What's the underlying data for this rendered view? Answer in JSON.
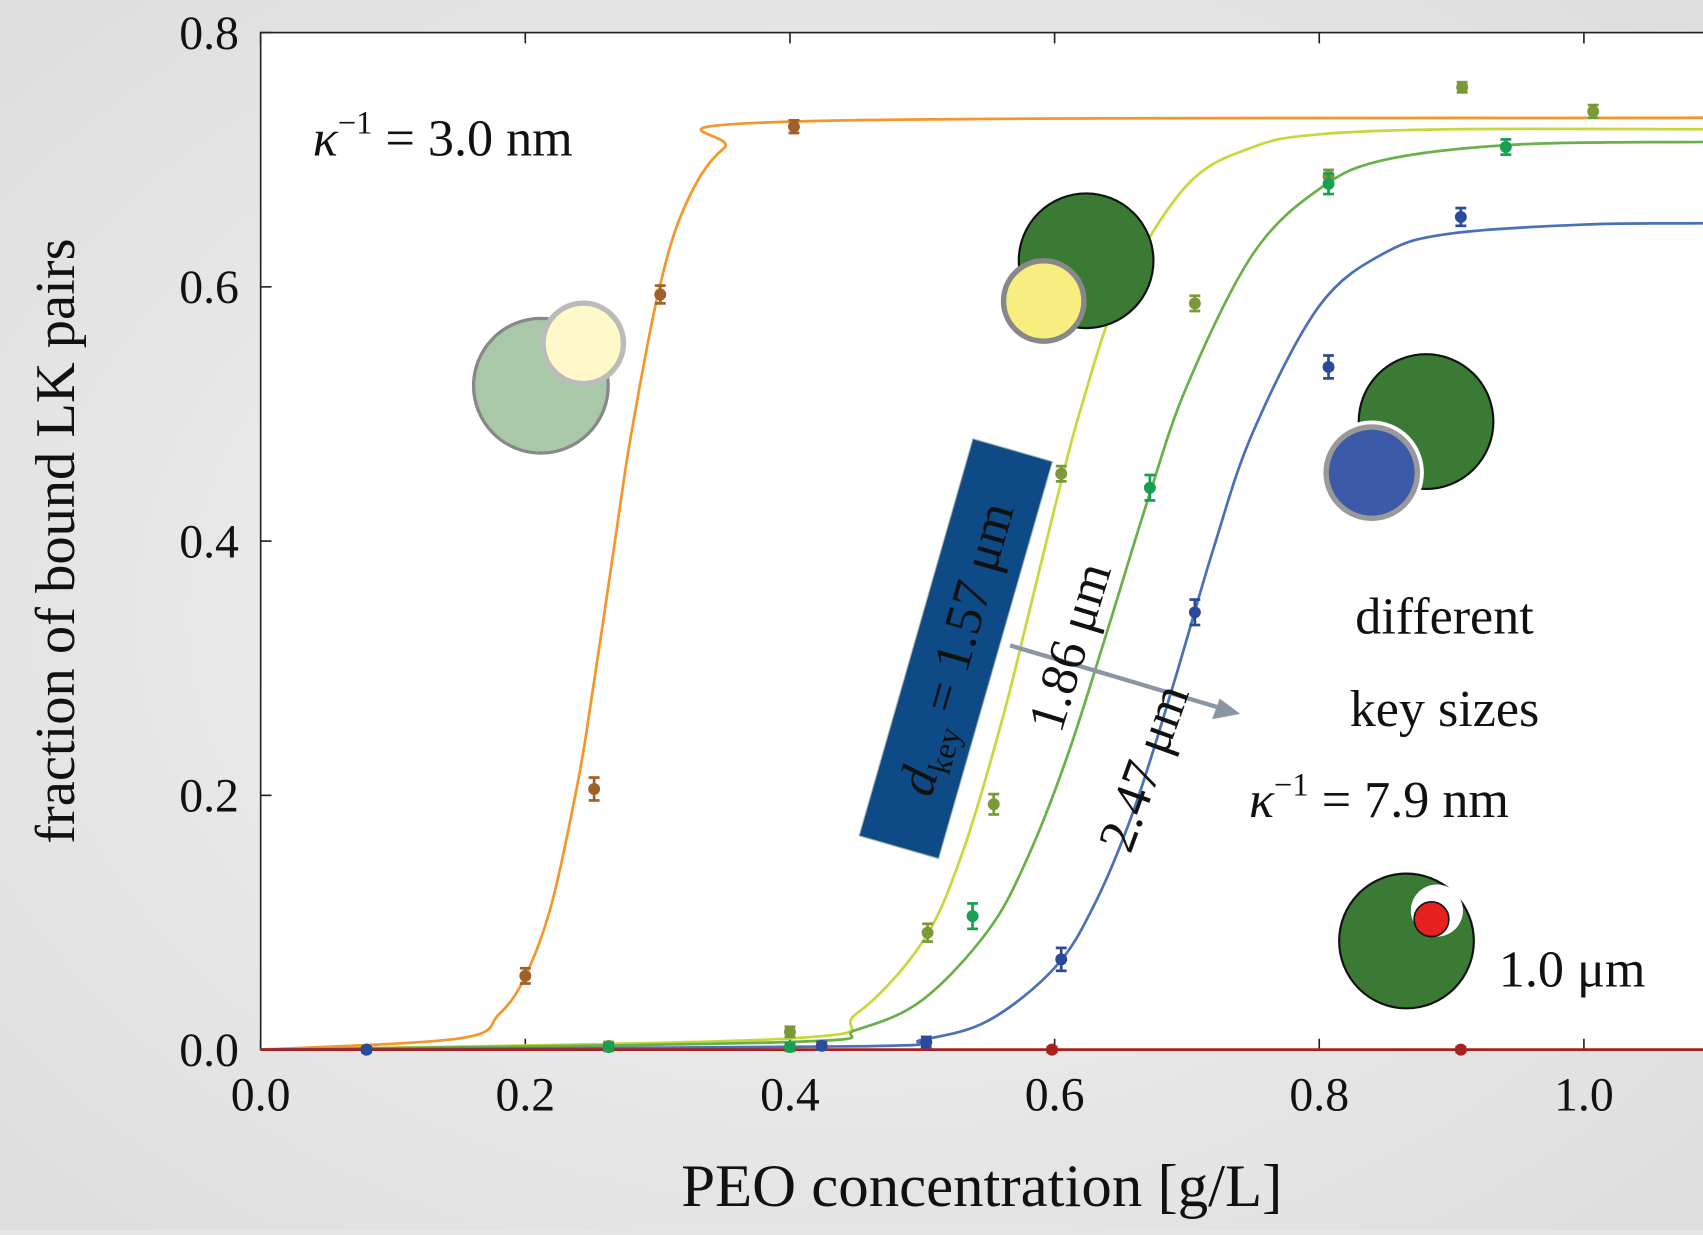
{
  "chart_data": {
    "type": "scatter",
    "xlabel": "PEO concentration  [g/L]",
    "ylabel": "fraction of bound LK pairs",
    "xlim": [
      0,
      1.09
    ],
    "ylim": [
      0,
      0.8
    ],
    "xticks": [
      {
        "value": 0,
        "label": "0.0"
      },
      {
        "value": 0.2,
        "label": "0.2"
      },
      {
        "value": 0.4,
        "label": "0.4"
      },
      {
        "value": 0.6,
        "label": "0.6"
      },
      {
        "value": 0.8,
        "label": "0.8"
      },
      {
        "value": 1,
        "label": "1.0"
      }
    ],
    "yticks": [
      {
        "value": 0,
        "label": "0.0"
      },
      {
        "value": 0.2,
        "label": "0.2"
      },
      {
        "value": 0.4,
        "label": "0.4"
      },
      {
        "value": 0.6,
        "label": "0.6"
      },
      {
        "value": 0.8,
        "label": "0.8"
      }
    ],
    "series": [
      {
        "color": "#a0602a",
        "x": [
          0.2,
          0.252,
          0.302,
          0.403
        ],
        "values": [
          0.058,
          0.205,
          0.594,
          0.726
        ],
        "errors": [
          0.006,
          0.009,
          0.007,
          0.005
        ]
      },
      {
        "color": "#7a9a3a",
        "x": [
          0.263,
          0.4,
          0.504,
          0.554,
          0.605,
          0.706,
          0.807,
          0.908,
          1.007
        ],
        "values": [
          0.003,
          0.014,
          0.092,
          0.193,
          0.453,
          0.587,
          0.687,
          0.757,
          0.738
        ],
        "errors": [
          0.003,
          0.004,
          0.007,
          0.008,
          0.006,
          0.006,
          0.005,
          0.004,
          0.005
        ]
      },
      {
        "color": "#18a050",
        "x": [
          0.08,
          0.263,
          0.4,
          0.538,
          0.672,
          0.807,
          0.941
        ],
        "values": [
          0,
          0.002,
          0.002,
          0.105,
          0.442,
          0.681,
          0.71
        ],
        "errors": [
          0.002,
          0.003,
          0.003,
          0.01,
          0.01,
          0.008,
          0.006
        ]
      },
      {
        "color": "#2a4a9a",
        "x": [
          0.08,
          0.424,
          0.503,
          0.605,
          0.706,
          0.807,
          0.907
        ],
        "values": [
          0,
          0.003,
          0.006,
          0.071,
          0.344,
          0.537,
          0.655
        ],
        "errors": [
          0.002,
          0.003,
          0.004,
          0.009,
          0.01,
          0.009,
          0.007
        ]
      },
      {
        "color": "#a82020",
        "x": [
          0.598,
          0.907
        ],
        "values": [
          0,
          0
        ],
        "errors": [
          0.002,
          0.002
        ]
      }
    ],
    "fits": [
      {
        "color": "#f5962a",
        "x": [
          0,
          0.15,
          0.18,
          0.2,
          0.22,
          0.24,
          0.25,
          0.26,
          0.27,
          0.28,
          0.3,
          0.32,
          0.35,
          0.4,
          1.09
        ],
        "values": [
          0,
          0.0088,
          0.0277,
          0.0577,
          0.115,
          0.212,
          0.276,
          0.345,
          0.416,
          0.484,
          0.593,
          0.662,
          0.709,
          0.73,
          0.733
        ]
      },
      {
        "color": "#c8d83a",
        "x": [
          0,
          0.4,
          0.45,
          0.5,
          0.53,
          0.56,
          0.58,
          0.6,
          0.62,
          0.65,
          0.7,
          0.75,
          0.8,
          0.9,
          1.09
        ],
        "values": [
          0,
          0.0088,
          0.0281,
          0.0845,
          0.154,
          0.258,
          0.341,
          0.426,
          0.505,
          0.597,
          0.68,
          0.71,
          0.72,
          0.724,
          0.724
        ]
      },
      {
        "color": "#6ab04a",
        "x": [
          0,
          0.4,
          0.45,
          0.5,
          0.55,
          0.58,
          0.61,
          0.64,
          0.67,
          0.7,
          0.75,
          0.8,
          0.85,
          0.95,
          1.09
        ],
        "values": [
          0,
          0.006,
          0.0155,
          0.039,
          0.094,
          0.152,
          0.232,
          0.33,
          0.431,
          0.522,
          0.626,
          0.677,
          0.7,
          0.712,
          0.714
        ]
      },
      {
        "color": "#4a70b8",
        "x": [
          0,
          0.45,
          0.5,
          0.55,
          0.6,
          0.63,
          0.66,
          0.69,
          0.72,
          0.75,
          0.8,
          0.85,
          0.9,
          1.0,
          1.09
        ],
        "values": [
          0,
          0.0026,
          0.0078,
          0.0229,
          0.0643,
          0.114,
          0.189,
          0.288,
          0.394,
          0.486,
          0.585,
          0.627,
          0.642,
          0.649,
          0.65
        ]
      },
      {
        "color": "#a82020",
        "x": [
          0,
          1.09
        ],
        "values": [
          0,
          0
        ]
      }
    ],
    "annotations": [
      {
        "symbol": "κ",
        "sup": "−1",
        "text": " = 3.0 nm"
      },
      {
        "lines": [
          "different",
          "key sizes"
        ]
      },
      {
        "symbol": "κ",
        "sup": "−1",
        "text": " = 7.9 nm"
      },
      {
        "symbol": "d",
        "sub": "key",
        "text": " = 1.57 μm",
        "color": "#f5e04a"
      },
      {
        "text": "1.86 μm",
        "color": "#1a8c1a"
      },
      {
        "text": "2.47 μm",
        "color": "#1a2ee0"
      },
      {
        "text": "1.0 μm",
        "color": "#e01818"
      }
    ]
  }
}
